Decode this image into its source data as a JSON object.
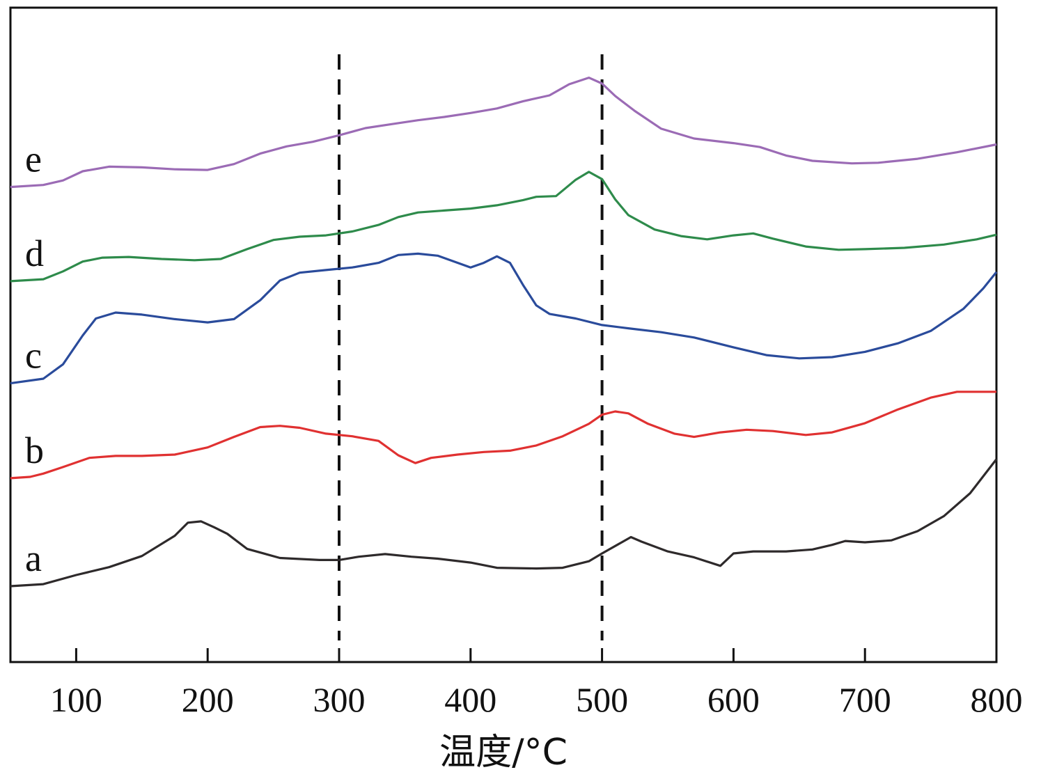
{
  "chart_data": {
    "type": "line",
    "title": "",
    "xlabel": "温度/°C",
    "ylabel": "",
    "xlim": [
      50,
      800
    ],
    "ylim": [
      0,
      100
    ],
    "x_ticks": [
      100,
      200,
      300,
      400,
      500,
      600,
      700,
      800
    ],
    "y_ticks_visible": false,
    "grid": false,
    "legend": "inline labels at left",
    "reference_lines": [
      300,
      500
    ],
    "series": [
      {
        "name": "a",
        "color": "#2e2a2b",
        "points": [
          [
            50,
            11.6
          ],
          [
            75,
            11.9
          ],
          [
            100,
            13.3
          ],
          [
            125,
            14.5
          ],
          [
            150,
            16.2
          ],
          [
            175,
            19.3
          ],
          [
            185,
            21.3
          ],
          [
            195,
            21.5
          ],
          [
            205,
            20.6
          ],
          [
            215,
            19.6
          ],
          [
            230,
            17.3
          ],
          [
            255,
            15.9
          ],
          [
            285,
            15.6
          ],
          [
            300,
            15.6
          ],
          [
            315,
            16.1
          ],
          [
            335,
            16.5
          ],
          [
            355,
            16.1
          ],
          [
            375,
            15.8
          ],
          [
            400,
            15.2
          ],
          [
            420,
            14.4
          ],
          [
            450,
            14.3
          ],
          [
            470,
            14.4
          ],
          [
            490,
            15.4
          ],
          [
            500,
            16.6
          ],
          [
            515,
            18.3
          ],
          [
            522,
            19.1
          ],
          [
            530,
            18.4
          ],
          [
            550,
            16.9
          ],
          [
            570,
            16.0
          ],
          [
            590,
            14.7
          ],
          [
            600,
            16.6
          ],
          [
            615,
            16.9
          ],
          [
            640,
            16.9
          ],
          [
            660,
            17.2
          ],
          [
            675,
            17.9
          ],
          [
            685,
            18.5
          ],
          [
            700,
            18.3
          ],
          [
            720,
            18.6
          ],
          [
            740,
            20.0
          ],
          [
            760,
            22.3
          ],
          [
            780,
            25.8
          ],
          [
            800,
            31.0
          ]
        ]
      },
      {
        "name": "b",
        "color": "#e03131",
        "points": [
          [
            50,
            28.1
          ],
          [
            65,
            28.3
          ],
          [
            75,
            28.8
          ],
          [
            90,
            29.8
          ],
          [
            110,
            31.2
          ],
          [
            130,
            31.5
          ],
          [
            150,
            31.5
          ],
          [
            175,
            31.7
          ],
          [
            200,
            32.8
          ],
          [
            220,
            34.4
          ],
          [
            240,
            35.9
          ],
          [
            255,
            36.1
          ],
          [
            270,
            35.8
          ],
          [
            290,
            34.9
          ],
          [
            310,
            34.5
          ],
          [
            330,
            33.8
          ],
          [
            345,
            31.6
          ],
          [
            358,
            30.4
          ],
          [
            370,
            31.2
          ],
          [
            390,
            31.7
          ],
          [
            410,
            32.1
          ],
          [
            430,
            32.3
          ],
          [
            450,
            33.1
          ],
          [
            470,
            34.5
          ],
          [
            490,
            36.4
          ],
          [
            500,
            37.8
          ],
          [
            510,
            38.3
          ],
          [
            520,
            38.0
          ],
          [
            535,
            36.4
          ],
          [
            555,
            34.9
          ],
          [
            570,
            34.4
          ],
          [
            590,
            35.1
          ],
          [
            610,
            35.5
          ],
          [
            630,
            35.3
          ],
          [
            655,
            34.7
          ],
          [
            675,
            35.1
          ],
          [
            700,
            36.5
          ],
          [
            725,
            38.6
          ],
          [
            750,
            40.4
          ],
          [
            770,
            41.3
          ],
          [
            800,
            41.3
          ]
        ]
      },
      {
        "name": "c",
        "color": "#2a4b9b",
        "points": [
          [
            50,
            42.6
          ],
          [
            75,
            43.3
          ],
          [
            90,
            45.5
          ],
          [
            105,
            49.9
          ],
          [
            115,
            52.5
          ],
          [
            130,
            53.4
          ],
          [
            150,
            53.1
          ],
          [
            175,
            52.4
          ],
          [
            200,
            51.9
          ],
          [
            220,
            52.4
          ],
          [
            240,
            55.3
          ],
          [
            255,
            58.3
          ],
          [
            270,
            59.5
          ],
          [
            290,
            59.9
          ],
          [
            310,
            60.3
          ],
          [
            330,
            61.0
          ],
          [
            345,
            62.2
          ],
          [
            360,
            62.4
          ],
          [
            375,
            62.1
          ],
          [
            400,
            60.3
          ],
          [
            410,
            61.0
          ],
          [
            420,
            62.0
          ],
          [
            430,
            61.0
          ],
          [
            440,
            57.6
          ],
          [
            450,
            54.5
          ],
          [
            460,
            53.2
          ],
          [
            480,
            52.5
          ],
          [
            500,
            51.5
          ],
          [
            520,
            51.0
          ],
          [
            545,
            50.4
          ],
          [
            570,
            49.6
          ],
          [
            600,
            48.1
          ],
          [
            625,
            46.9
          ],
          [
            650,
            46.4
          ],
          [
            675,
            46.6
          ],
          [
            700,
            47.4
          ],
          [
            725,
            48.7
          ],
          [
            750,
            50.6
          ],
          [
            775,
            54.0
          ],
          [
            790,
            57.1
          ],
          [
            800,
            59.6
          ]
        ]
      },
      {
        "name": "d",
        "color": "#2e8b4b",
        "points": [
          [
            50,
            58.2
          ],
          [
            75,
            58.5
          ],
          [
            90,
            59.7
          ],
          [
            105,
            61.2
          ],
          [
            120,
            61.8
          ],
          [
            140,
            61.9
          ],
          [
            165,
            61.6
          ],
          [
            190,
            61.4
          ],
          [
            210,
            61.6
          ],
          [
            230,
            63.1
          ],
          [
            250,
            64.5
          ],
          [
            270,
            65.0
          ],
          [
            290,
            65.2
          ],
          [
            310,
            65.8
          ],
          [
            330,
            66.8
          ],
          [
            345,
            68.0
          ],
          [
            360,
            68.7
          ],
          [
            380,
            69.0
          ],
          [
            400,
            69.3
          ],
          [
            420,
            69.8
          ],
          [
            440,
            70.6
          ],
          [
            450,
            71.1
          ],
          [
            465,
            71.2
          ],
          [
            480,
            73.7
          ],
          [
            490,
            74.9
          ],
          [
            500,
            73.8
          ],
          [
            510,
            70.7
          ],
          [
            520,
            68.3
          ],
          [
            540,
            66.1
          ],
          [
            560,
            65.1
          ],
          [
            580,
            64.6
          ],
          [
            600,
            65.2
          ],
          [
            615,
            65.5
          ],
          [
            630,
            64.7
          ],
          [
            655,
            63.5
          ],
          [
            680,
            63.0
          ],
          [
            700,
            63.1
          ],
          [
            730,
            63.3
          ],
          [
            760,
            63.8
          ],
          [
            785,
            64.6
          ],
          [
            800,
            65.3
          ]
        ]
      },
      {
        "name": "e",
        "color": "#9b6bb5",
        "points": [
          [
            50,
            72.6
          ],
          [
            75,
            72.9
          ],
          [
            90,
            73.6
          ],
          [
            105,
            75.0
          ],
          [
            125,
            75.7
          ],
          [
            150,
            75.6
          ],
          [
            175,
            75.3
          ],
          [
            200,
            75.2
          ],
          [
            220,
            76.1
          ],
          [
            240,
            77.7
          ],
          [
            260,
            78.8
          ],
          [
            280,
            79.5
          ],
          [
            300,
            80.5
          ],
          [
            320,
            81.6
          ],
          [
            340,
            82.2
          ],
          [
            360,
            82.8
          ],
          [
            380,
            83.3
          ],
          [
            400,
            83.9
          ],
          [
            420,
            84.6
          ],
          [
            440,
            85.7
          ],
          [
            460,
            86.6
          ],
          [
            475,
            88.3
          ],
          [
            490,
            89.3
          ],
          [
            500,
            88.4
          ],
          [
            510,
            86.5
          ],
          [
            525,
            84.2
          ],
          [
            545,
            81.5
          ],
          [
            570,
            80.0
          ],
          [
            600,
            79.3
          ],
          [
            620,
            78.7
          ],
          [
            640,
            77.4
          ],
          [
            660,
            76.6
          ],
          [
            690,
            76.2
          ],
          [
            710,
            76.3
          ],
          [
            740,
            76.9
          ],
          [
            770,
            77.9
          ],
          [
            800,
            79.1
          ]
        ]
      }
    ]
  }
}
